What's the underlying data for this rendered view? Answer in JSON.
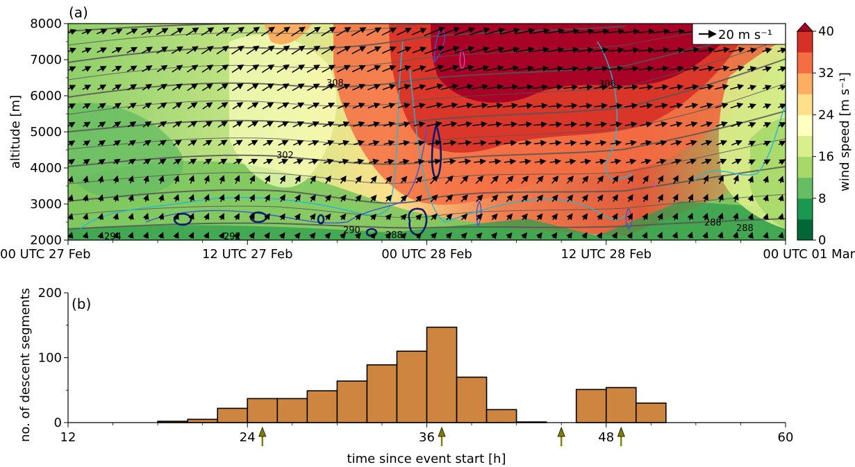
{
  "chart_data": [
    {
      "panel_label": "(a)",
      "type": "heatmap",
      "ylabel": "altitude [m]",
      "ylim": [
        2000,
        8000
      ],
      "yticks": [
        "2000",
        "3000",
        "4000",
        "5000",
        "6000",
        "7000",
        "8000"
      ],
      "xticks": [
        "00 UTC 27 Feb",
        "12 UTC 27 Feb",
        "00 UTC 28 Feb",
        "12 UTC 28 Feb",
        "00 UTC 01 Mar"
      ],
      "colorbar": {
        "label": "wind speed [m s⁻¹]",
        "range": [
          0,
          40
        ],
        "ticks": [
          "0",
          "8",
          "16",
          "24",
          "32",
          "40"
        ],
        "colors": [
          "#006837",
          "#1a9850",
          "#66bd63",
          "#a6d96a",
          "#d9ef8b",
          "#ffffbf",
          "#fee08b",
          "#fdae61",
          "#f46d43",
          "#d73027",
          "#a50026"
        ]
      },
      "quiver_key": "20 m s⁻¹",
      "contour_labels": [
        "308",
        "306",
        "302",
        "290",
        "288",
        "288",
        "288",
        "294",
        "292"
      ],
      "colors": {
        "theta_contour": "#555555",
        "cyan_contour": "#22b8d8",
        "blue_contour": "#4455cc",
        "navy_contour": "#0a1a6e",
        "magenta_contour": "#e040c0"
      }
    },
    {
      "panel_label": "(b)",
      "type": "bar",
      "xlabel": "time since event start [h]",
      "ylabel": "no. of descent segments",
      "xlim": [
        12,
        60
      ],
      "ylim": [
        0,
        200
      ],
      "xticks": [
        "12",
        "24",
        "36",
        "48",
        "60"
      ],
      "yticks": [
        "0",
        "100",
        "200"
      ],
      "bin_edges": [
        18,
        20,
        22,
        24,
        26,
        28,
        30,
        32,
        34,
        36,
        38,
        40,
        42,
        44,
        46,
        48,
        50,
        52
      ],
      "values": [
        2,
        5,
        22,
        37,
        37,
        49,
        64,
        89,
        110,
        147,
        70,
        20,
        1,
        0,
        51,
        54,
        30
      ],
      "bar_color": "#cd853f",
      "arrows_at_hours": [
        25,
        37,
        45,
        49
      ],
      "arrow_color": "#808000"
    }
  ]
}
